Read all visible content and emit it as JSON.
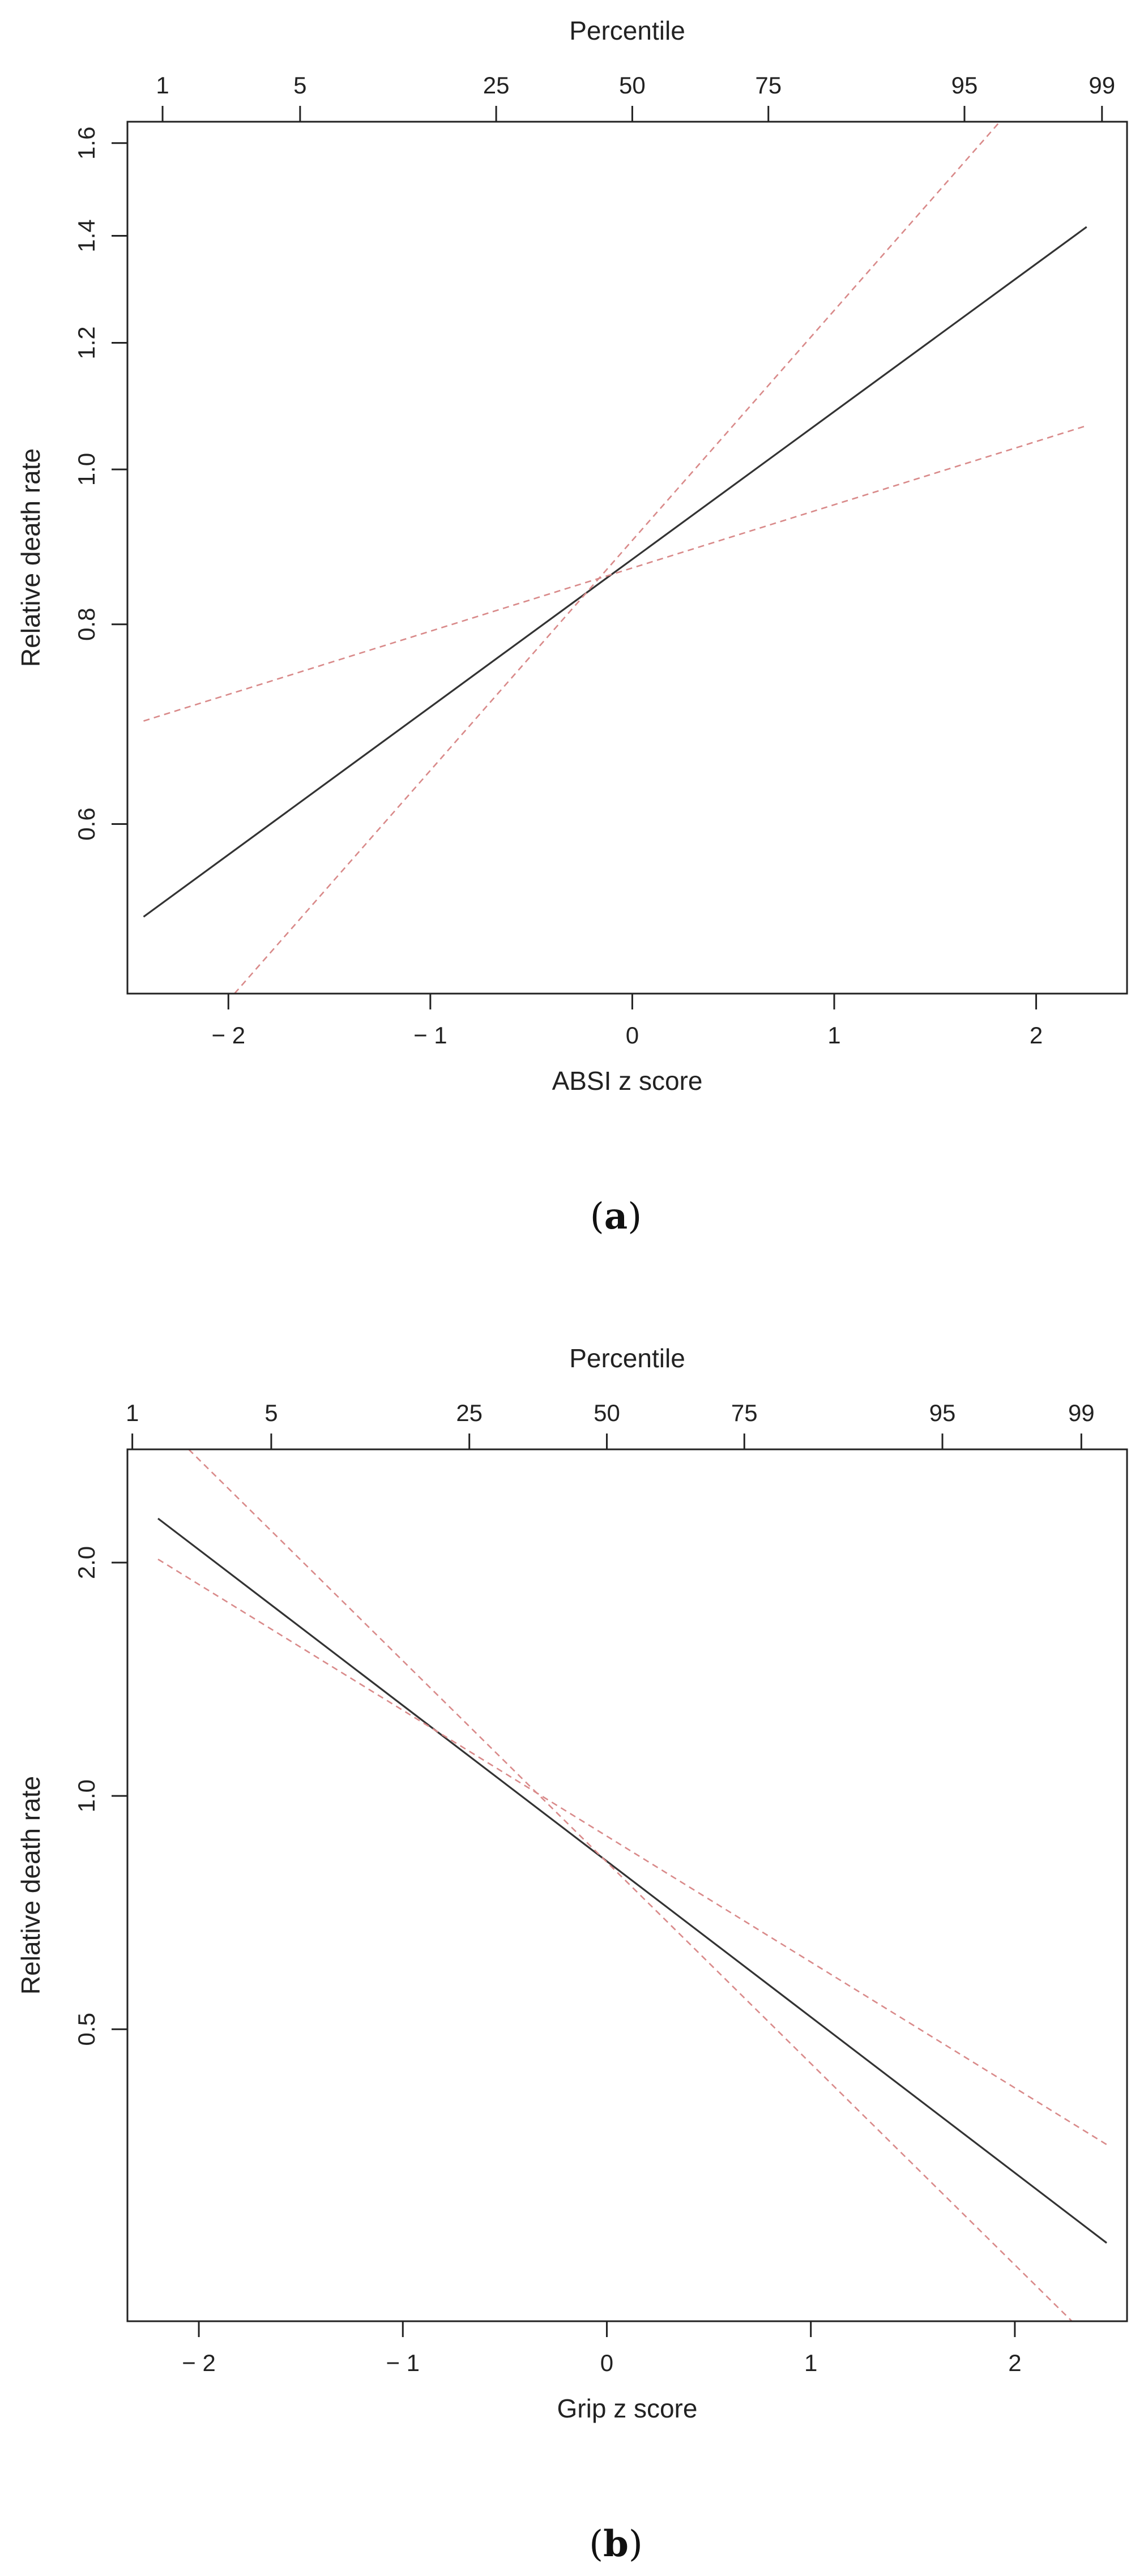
{
  "chart_data": [
    {
      "type": "line",
      "caption_letter": "a",
      "xlabel": "ABSI z score",
      "ylabel": "Relative death rate",
      "top_axis_label": "Percentile",
      "x_axis": {
        "range": [
          -2.5,
          2.45
        ],
        "ticks": [
          -2,
          -1,
          0,
          1,
          2
        ],
        "tick_labels": [
          "− 2",
          "− 1",
          "0",
          "1",
          "2"
        ]
      },
      "top_axis": {
        "ticks_x": [
          -2.326,
          -1.645,
          -0.674,
          0.0,
          0.674,
          1.645,
          2.326
        ],
        "tick_labels": [
          "1",
          "5",
          "25",
          "50",
          "75",
          "95",
          "99"
        ]
      },
      "y_axis": {
        "scale": "log",
        "range": [
          0.47,
          1.65
        ],
        "ticks": [
          0.6,
          0.8,
          1.0,
          1.2,
          1.4,
          1.6
        ],
        "tick_labels": [
          "0.6",
          "0.8",
          "1.0",
          "1.2",
          "1.4",
          "1.6"
        ]
      },
      "series": [
        {
          "style": "solid",
          "color": "#333333",
          "x": [
            -2.42,
            2.25
          ],
          "y": [
            0.525,
            1.418
          ]
        },
        {
          "style": "dashed",
          "color": "#d98a8a",
          "x": [
            -2.42,
            2.25
          ],
          "y": [
            0.696,
            1.065
          ]
        },
        {
          "style": "dashed",
          "color": "#d98a8a",
          "x": [
            -1.97,
            1.82
          ],
          "y": [
            0.47,
            1.65
          ]
        }
      ]
    },
    {
      "type": "line",
      "caption_letter": "b",
      "xlabel": "Grip z score",
      "ylabel": "Relative death rate",
      "top_axis_label": "Percentile",
      "x_axis": {
        "range": [
          -2.35,
          2.55
        ],
        "ticks": [
          -2,
          -1,
          0,
          1,
          2
        ],
        "tick_labels": [
          "− 2",
          "− 1",
          "0",
          "1",
          "2"
        ]
      },
      "top_axis": {
        "ticks_x": [
          -2.326,
          -1.645,
          -0.674,
          0.0,
          0.674,
          1.645,
          2.326
        ],
        "tick_labels": [
          "1",
          "5",
          "25",
          "50",
          "75",
          "95",
          "99"
        ]
      },
      "y_axis": {
        "scale": "log",
        "range": [
          0.21,
          2.8
        ],
        "ticks": [
          0.5,
          1.0,
          2.0
        ],
        "tick_labels": [
          "0.5",
          "1.0",
          "2.0"
        ]
      },
      "series": [
        {
          "style": "solid",
          "color": "#333333",
          "x": [
            -2.2,
            2.45
          ],
          "y": [
            2.28,
            0.265
          ]
        },
        {
          "style": "dashed",
          "color": "#d98a8a",
          "x": [
            -2.2,
            2.45
          ],
          "y": [
            2.02,
            0.355
          ]
        },
        {
          "style": "dashed",
          "color": "#d98a8a",
          "x": [
            -2.05,
            2.28
          ],
          "y": [
            2.8,
            0.21
          ]
        }
      ]
    }
  ]
}
